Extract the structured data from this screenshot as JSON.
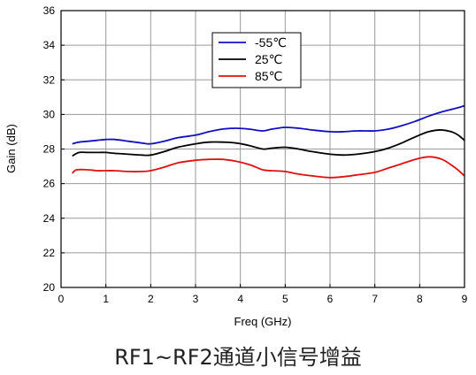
{
  "caption": "RF1~RF2通道小信号增益",
  "chart_data": {
    "type": "line",
    "xlabel": "Freq (GHz)",
    "ylabel": "Gain (dB)",
    "xlim": [
      0,
      9
    ],
    "ylim": [
      20,
      36
    ],
    "xticks": [
      0,
      1,
      2,
      3,
      4,
      5,
      6,
      7,
      8,
      9
    ],
    "yticks": [
      20,
      22,
      24,
      26,
      28,
      30,
      32,
      34,
      36
    ],
    "grid": true,
    "legend_position": "top-center",
    "series": [
      {
        "name": "-55℃",
        "color": "#1010c0",
        "x": [
          0.25,
          0.4,
          0.6,
          0.8,
          1.0,
          1.2,
          1.5,
          1.8,
          2.0,
          2.3,
          2.6,
          3.0,
          3.3,
          3.6,
          3.9,
          4.2,
          4.5,
          4.7,
          5.0,
          5.3,
          5.6,
          6.0,
          6.3,
          6.6,
          7.0,
          7.3,
          7.6,
          7.9,
          8.2,
          8.5,
          8.8,
          9.0
        ],
        "y": [
          28.3,
          28.4,
          28.45,
          28.5,
          28.55,
          28.55,
          28.45,
          28.35,
          28.3,
          28.45,
          28.65,
          28.8,
          29.0,
          29.15,
          29.2,
          29.15,
          29.05,
          29.15,
          29.25,
          29.2,
          29.1,
          29.0,
          29.0,
          29.05,
          29.05,
          29.15,
          29.35,
          29.6,
          29.9,
          30.15,
          30.35,
          30.5
        ]
      },
      {
        "name": "25℃",
        "color": "#000000",
        "x": [
          0.25,
          0.4,
          0.6,
          0.8,
          1.0,
          1.2,
          1.5,
          1.8,
          2.0,
          2.3,
          2.6,
          3.0,
          3.3,
          3.6,
          3.9,
          4.2,
          4.5,
          4.7,
          5.0,
          5.3,
          5.6,
          6.0,
          6.3,
          6.6,
          7.0,
          7.3,
          7.6,
          7.9,
          8.2,
          8.5,
          8.8,
          9.0
        ],
        "y": [
          27.6,
          27.8,
          27.8,
          27.8,
          27.8,
          27.75,
          27.7,
          27.65,
          27.65,
          27.85,
          28.1,
          28.3,
          28.4,
          28.4,
          28.35,
          28.2,
          28.0,
          28.05,
          28.1,
          28.0,
          27.85,
          27.7,
          27.65,
          27.7,
          27.85,
          28.05,
          28.35,
          28.7,
          29.0,
          29.1,
          28.9,
          28.5
        ]
      },
      {
        "name": "85℃",
        "color": "#e01010",
        "x": [
          0.25,
          0.35,
          0.6,
          0.8,
          1.0,
          1.2,
          1.5,
          1.8,
          2.0,
          2.3,
          2.6,
          3.0,
          3.3,
          3.6,
          3.9,
          4.2,
          4.5,
          4.7,
          5.0,
          5.3,
          5.6,
          6.0,
          6.3,
          6.6,
          7.0,
          7.3,
          7.6,
          7.9,
          8.2,
          8.5,
          8.8,
          9.0
        ],
        "y": [
          26.6,
          26.8,
          26.8,
          26.75,
          26.75,
          26.75,
          26.7,
          26.7,
          26.75,
          26.95,
          27.2,
          27.35,
          27.4,
          27.4,
          27.3,
          27.1,
          26.8,
          26.75,
          26.7,
          26.55,
          26.45,
          26.35,
          26.4,
          26.5,
          26.65,
          26.9,
          27.15,
          27.4,
          27.55,
          27.4,
          26.9,
          26.45
        ]
      }
    ]
  }
}
